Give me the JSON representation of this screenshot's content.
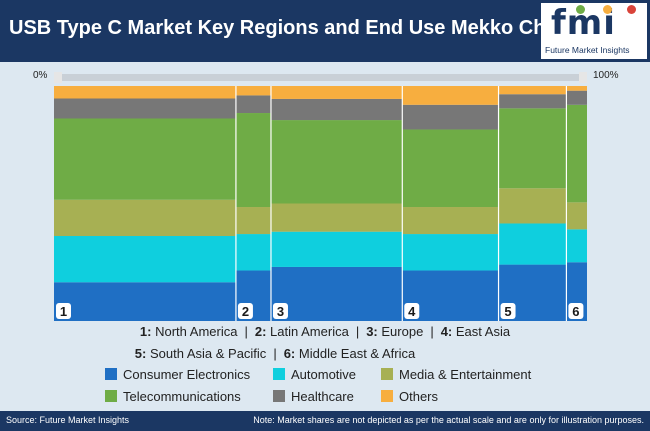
{
  "header": {
    "title": "USB Type C Market Key Regions and End Use Mekko Chart"
  },
  "logo": {
    "wordmark": "fmi",
    "subtitle": "Future Market Insights"
  },
  "chart_data": {
    "type": "mekko",
    "axis": {
      "start_label": "0%",
      "end_label": "100%"
    },
    "columns": [
      {
        "id": "1",
        "width": 32.7,
        "values": [
          15.5,
          18.5,
          14.5,
          32.5,
          8.0,
          5.0
        ]
      },
      {
        "id": "2",
        "width": 6.3,
        "values": [
          21.5,
          15.5,
          11.5,
          40.0,
          7.5,
          4.0
        ]
      },
      {
        "id": "3",
        "width": 23.6,
        "values": [
          23.0,
          15.0,
          12.0,
          35.5,
          9.0,
          5.5
        ]
      },
      {
        "id": "4",
        "width": 17.3,
        "values": [
          21.5,
          15.5,
          11.5,
          33.0,
          10.5,
          8.0
        ]
      },
      {
        "id": "5",
        "width": 12.2,
        "values": [
          24.0,
          17.5,
          15.0,
          34.0,
          6.0,
          3.5
        ]
      },
      {
        "id": "6",
        "width": 3.7,
        "values": [
          25.0,
          14.0,
          11.5,
          41.5,
          6.0,
          2.0
        ]
      }
    ],
    "series": [
      {
        "name": "Consumer Electronics",
        "color": "#1f6fc4"
      },
      {
        "name": "Automotive",
        "color": "#0fcfde"
      },
      {
        "name": "Media & Entertainment",
        "color": "#a7b053"
      },
      {
        "name": "Telecommunications",
        "color": "#6fac46"
      },
      {
        "name": "Healthcare",
        "color": "#777777"
      },
      {
        "name": "Others",
        "color": "#f7ae3f"
      }
    ]
  },
  "region_keys": [
    {
      "num": "1:",
      "name": "North America"
    },
    {
      "num": "2:",
      "name": "Latin America"
    },
    {
      "num": "3:",
      "name": "Europe"
    },
    {
      "num": "4:",
      "name": "East Asia"
    },
    {
      "num": "5:",
      "name": "South Asia & Pacific"
    },
    {
      "num": "6:",
      "name": "Middle East & Africa"
    }
  ],
  "separator": "|",
  "footer": {
    "source": "Source: Future Market Insights",
    "note": "Note: Market shares are not depicted as per the actual scale and are only for illustration purposes."
  }
}
